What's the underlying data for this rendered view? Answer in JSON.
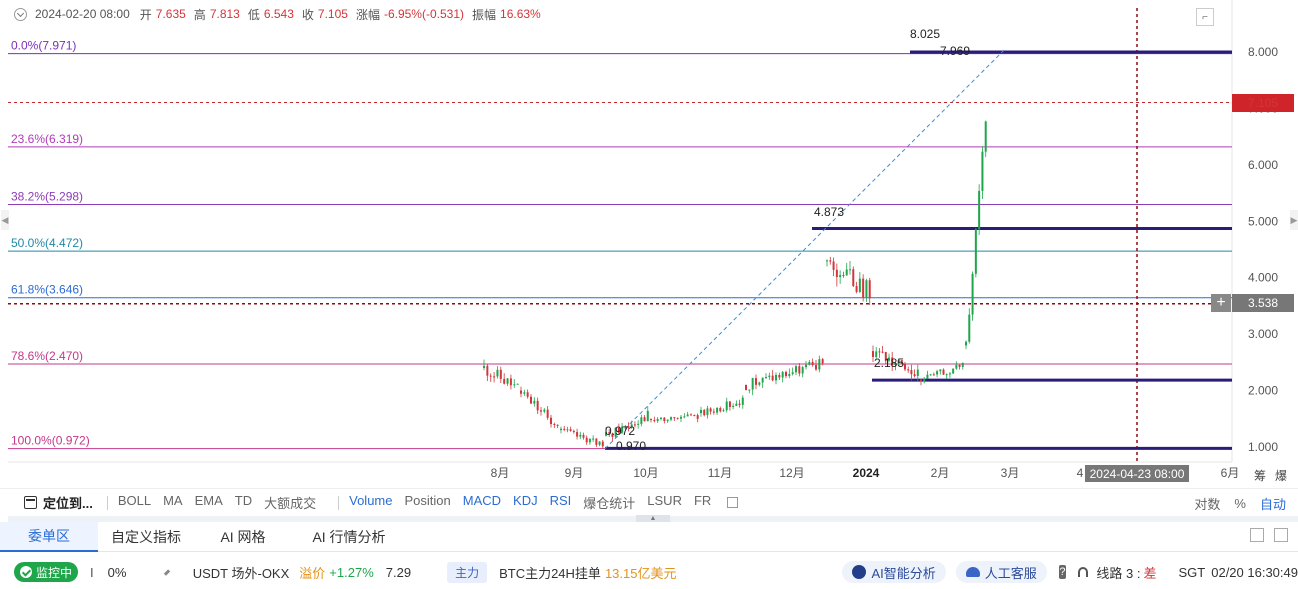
{
  "ohlc": {
    "date": "2024-02-20 08:00",
    "open_label": "开",
    "open": "7.635",
    "high_label": "高",
    "high": "7.813",
    "low_label": "低",
    "low": "6.543",
    "close_label": "收",
    "close": "7.105",
    "change_label": "涨幅",
    "change": "-6.95%(-0.531)",
    "amplitude_label": "振幅",
    "amplitude": "16.63%"
  },
  "chart_data": {
    "type": "candlestick",
    "y_ticks": [
      "8.000",
      "7.000",
      "6.000",
      "5.000",
      "4.000",
      "3.000",
      "2.000",
      "1.000"
    ],
    "x_ticks": [
      "8月",
      "9月",
      "10月",
      "11月",
      "12月",
      "2024",
      "2月",
      "3月",
      "4",
      "6月"
    ],
    "fib_levels": [
      {
        "label": "0.0%(7.971)",
        "value": 7.971,
        "color": "#7b2fbe"
      },
      {
        "label": "23.6%(6.319)",
        "value": 6.319,
        "color": "#b23ab8"
      },
      {
        "label": "38.2%(5.298)",
        "value": 5.298,
        "color": "#8e3bb8"
      },
      {
        "label": "50.0%(4.472)",
        "value": 4.472,
        "color": "#1f8aa8"
      },
      {
        "label": "61.8%(3.646)",
        "value": 3.646,
        "color": "#2b6cd4"
      },
      {
        "label": "78.6%(2.470)",
        "value": 2.47,
        "color": "#c2388a"
      },
      {
        "label": "100.0%(0.972)",
        "value": 0.972,
        "color": "#c2388a"
      }
    ],
    "annotations": [
      "8.025",
      "7.969",
      "4.873",
      "2.185",
      "0.972",
      "0.970"
    ],
    "current_price": "7.105",
    "crosshair_price": "3.538",
    "crosshair_date": "2024-04-23 08:00",
    "ylim": [
      0.95,
      8.15
    ]
  },
  "axis_extra": {
    "chou": "筹",
    "bao": "爆"
  },
  "indicators": {
    "locate": "定位到...",
    "items": [
      {
        "label": "BOLL",
        "on": false
      },
      {
        "label": "MA",
        "on": false
      },
      {
        "label": "EMA",
        "on": false
      },
      {
        "label": "TD",
        "on": false
      },
      {
        "label": "大额成交",
        "on": false
      }
    ],
    "items2": [
      {
        "label": "Volume",
        "on": true
      },
      {
        "label": "Position",
        "on": false
      },
      {
        "label": "MACD",
        "on": true
      },
      {
        "label": "KDJ",
        "on": true
      },
      {
        "label": "RSI",
        "on": true
      },
      {
        "label": "爆仓统计",
        "on": false
      },
      {
        "label": "LSUR",
        "on": false
      },
      {
        "label": "FR",
        "on": false
      }
    ],
    "log": "对数",
    "pct": "%",
    "auto": "自动"
  },
  "tabs": [
    "委单区",
    "自定义指标",
    "AI 网格",
    "AI 行情分析"
  ],
  "status": {
    "monitor": "监控中",
    "symbol_cut": "I",
    "pct": "0%",
    "usdt_label": "USDT 场外-OKX",
    "premium_label": "溢价",
    "premium": "+1.27%",
    "usdt_price": "7.29",
    "main_tag": "主力",
    "btc_label": "BTC主力24H挂单",
    "btc_value": "13.15亿美元",
    "ai_btn": "AI智能分析",
    "cs_btn": "人工客服",
    "line_label": "线路 3 :",
    "line_quality": "差",
    "tz": "SGT",
    "time": "02/20 16:30:49"
  }
}
